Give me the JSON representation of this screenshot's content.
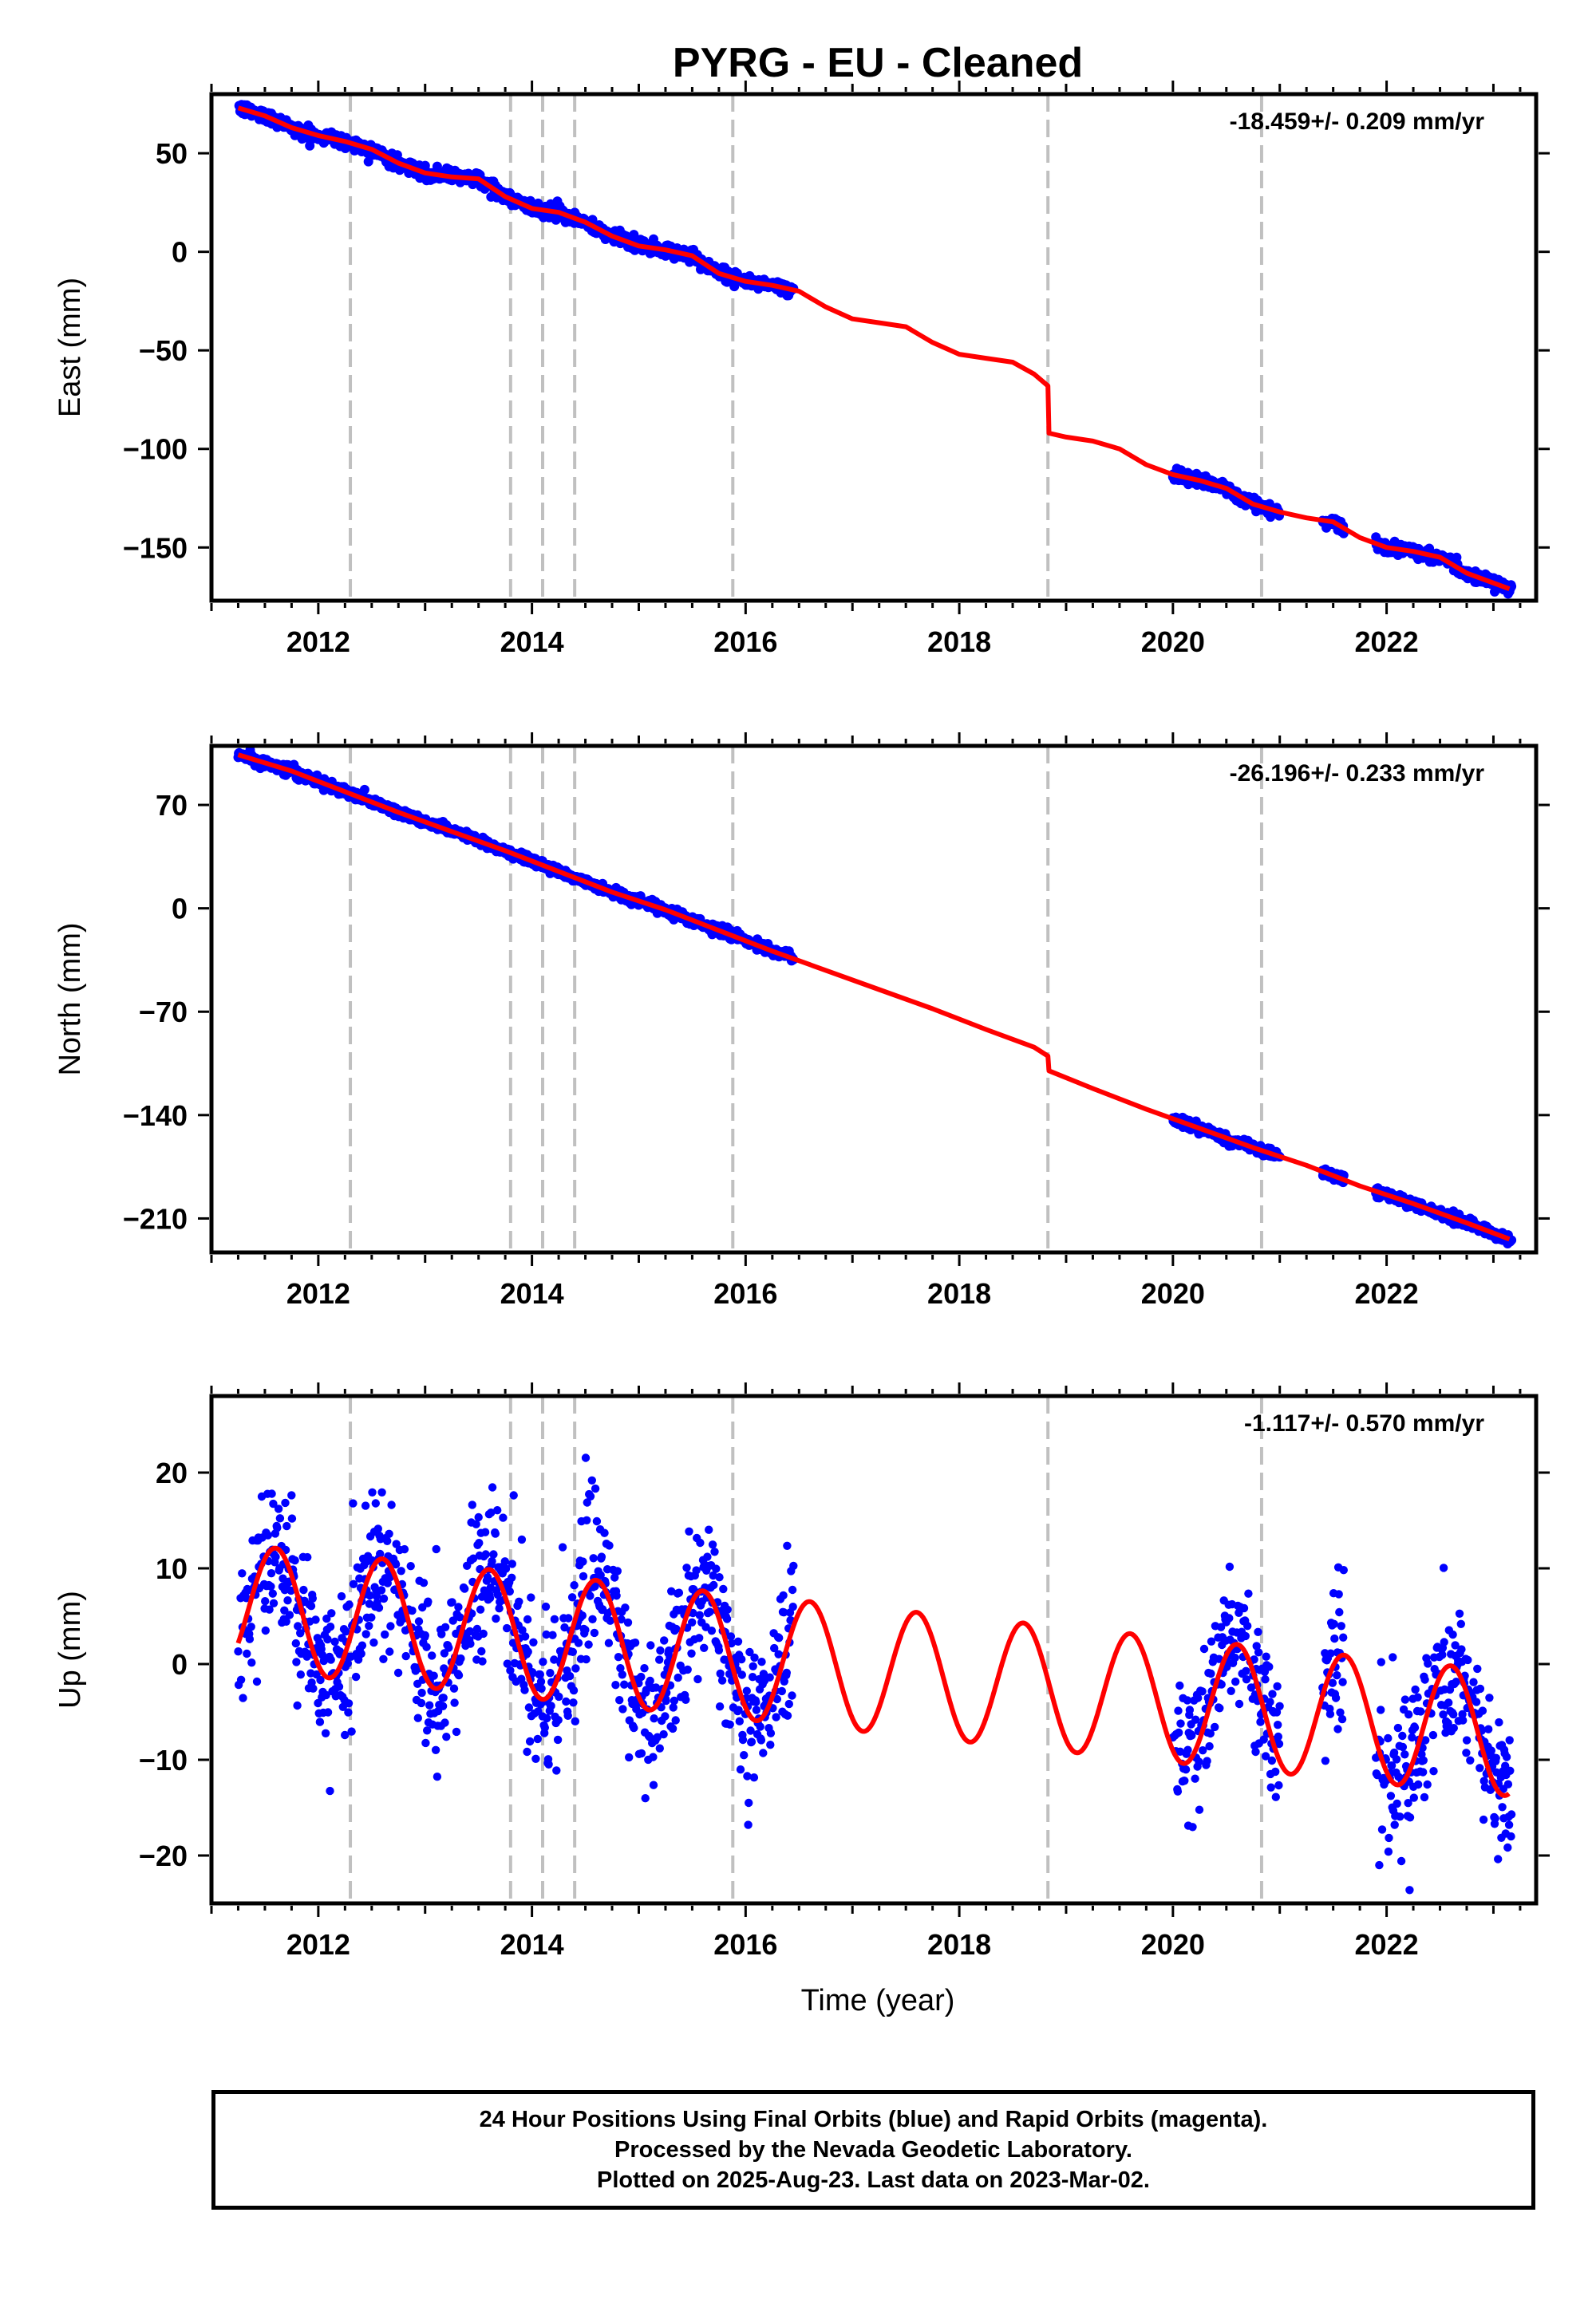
{
  "title": "PYRG  - EU - Cleaned",
  "xlabel": "Time (year)",
  "footer": [
    "24 Hour Positions Using Final Orbits (blue) and Rapid Orbits (magenta).",
    "Processed by the Nevada Geodetic Laboratory.",
    "Plotted on 2025-Aug-23. Last data on 2023-Mar-02."
  ],
  "colors": {
    "data": "#0000ff",
    "model": "#ff0000",
    "events": "#c0c0c0",
    "axis": "#000000"
  },
  "chart_data": [
    {
      "type": "scatter",
      "ylabel": "East (mm)",
      "rate_label": "-18.459+/- 0.209 mm/yr",
      "xlim": [
        2011.0,
        2023.4
      ],
      "ylim": [
        -177,
        80
      ],
      "xticks": [
        2012,
        2014,
        2016,
        2018,
        2020,
        2022
      ],
      "yticks": [
        50,
        0,
        -50,
        -100,
        -150
      ],
      "event_lines": [
        2012.3,
        2013.8,
        2014.1,
        2014.4,
        2015.88,
        2018.83,
        2020.83
      ],
      "model_curve": {
        "x": [
          2011.25,
          2011.5,
          2011.75,
          2012.0,
          2012.25,
          2012.5,
          2012.75,
          2013.0,
          2013.25,
          2013.5,
          2013.75,
          2014.0,
          2014.25,
          2014.5,
          2014.75,
          2015.0,
          2015.25,
          2015.5,
          2015.75,
          2016.0,
          2016.25,
          2016.5,
          2016.75,
          2017.0,
          2017.25,
          2017.5,
          2017.75,
          2018.0,
          2018.25,
          2018.5,
          2018.7,
          2018.83,
          2018.84,
          2019.0,
          2019.25,
          2019.5,
          2019.75,
          2020.0,
          2020.25,
          2020.5,
          2020.75,
          2021.0,
          2021.25,
          2021.5,
          2021.75,
          2022.0,
          2022.25,
          2022.5,
          2022.75,
          2023.0,
          2023.15
        ],
        "y": [
          73,
          69,
          63,
          59,
          56,
          52,
          45,
          40,
          38,
          37,
          28,
          22,
          20,
          15,
          8,
          3,
          1,
          -2,
          -11,
          -15,
          -17,
          -20,
          -28,
          -34,
          -36,
          -38,
          -46,
          -52,
          -54,
          -56,
          -62,
          -68,
          -92,
          -94,
          -96,
          -100,
          -108,
          -113,
          -116,
          -120,
          -128,
          -132,
          -135,
          -137,
          -145,
          -150,
          -152,
          -155,
          -163,
          -168,
          -171
        ]
      },
      "observation_spans": [
        [
          2011.25,
          2016.45
        ],
        [
          2020.0,
          2021.0
        ],
        [
          2021.4,
          2021.6
        ],
        [
          2021.9,
          2023.17
        ]
      ],
      "scatter_sigma_mm": 1.6
    },
    {
      "type": "scatter",
      "ylabel": "North (mm)",
      "rate_label": "-26.196+/- 0.233 mm/yr",
      "xlim": [
        2011.0,
        2023.4
      ],
      "ylim": [
        -233,
        110
      ],
      "xticks": [
        2012,
        2014,
        2016,
        2018,
        2020,
        2022
      ],
      "yticks": [
        70,
        0,
        -70,
        -140,
        -210
      ],
      "event_lines": [
        2012.3,
        2013.8,
        2014.1,
        2014.4,
        2015.88,
        2018.83,
        2020.83
      ],
      "model_curve": {
        "x": [
          2011.25,
          2011.75,
          2012.25,
          2012.75,
          2013.25,
          2013.75,
          2014.25,
          2014.75,
          2015.25,
          2015.75,
          2016.25,
          2016.75,
          2017.25,
          2017.75,
          2018.25,
          2018.7,
          2018.83,
          2018.84,
          2019.25,
          2019.75,
          2020.25,
          2020.75,
          2021.25,
          2021.75,
          2022.25,
          2022.75,
          2023.15
        ],
        "y": [
          104,
          93,
          79,
          65,
          52,
          39,
          25,
          11,
          -1,
          -15,
          -29,
          -42,
          -55,
          -68,
          -82,
          -94,
          -100,
          -110,
          -122,
          -136,
          -149,
          -162,
          -174,
          -188,
          -200,
          -213,
          -224
        ]
      },
      "observation_spans": [
        [
          2011.25,
          2016.45
        ],
        [
          2020.0,
          2021.0
        ],
        [
          2021.4,
          2021.6
        ],
        [
          2021.9,
          2023.17
        ]
      ],
      "scatter_sigma_mm": 1.6
    },
    {
      "type": "scatter",
      "ylabel": "Up (mm)",
      "rate_label": "-1.117+/- 0.570 mm/yr",
      "xlim": [
        2011.0,
        2023.4
      ],
      "ylim": [
        -25,
        28
      ],
      "xticks": [
        2012,
        2014,
        2016,
        2018,
        2020,
        2022
      ],
      "yticks": [
        20,
        10,
        0,
        -10,
        -20
      ],
      "event_lines": [
        2012.3,
        2013.8,
        2014.1,
        2014.4,
        2015.88,
        2018.83,
        2020.83
      ],
      "model_curve": {
        "form": "offset + rate*(t-2011.25) + amplitude*cos(2*pi*(t-peak_phase))",
        "offset": 6,
        "rate": -1.117,
        "amplitude": 6.5,
        "peak_phase": 0.6
      },
      "observation_spans": [
        [
          2011.25,
          2016.45
        ],
        [
          2020.0,
          2021.0
        ],
        [
          2021.4,
          2021.6
        ],
        [
          2021.9,
          2023.17
        ]
      ],
      "scatter_sigma_mm": 4.0
    }
  ]
}
